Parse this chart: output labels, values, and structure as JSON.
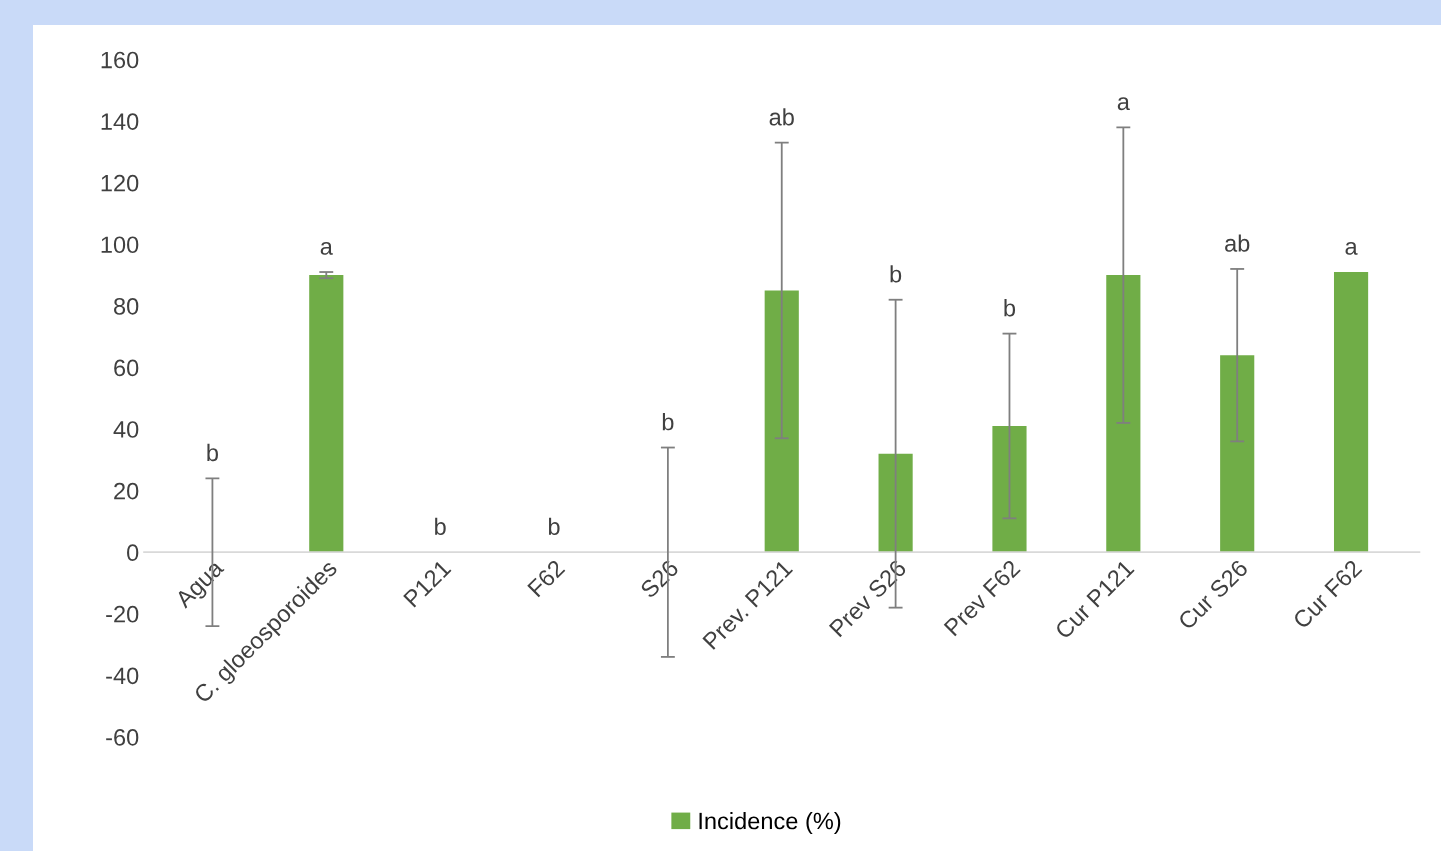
{
  "chart_data": {
    "type": "bar",
    "categories": [
      "Agua",
      "C. gloeosporoides",
      "P121",
      "F62",
      "S26",
      "Prev. P121",
      "Prev S26",
      "Prev F62",
      "Cur P121",
      "Cur S26",
      "Cur F62"
    ],
    "series": [
      {
        "name": "Incidence (%)",
        "color": "#70ad47",
        "values": [
          0,
          90,
          0,
          0,
          0,
          85,
          32,
          41,
          90,
          64,
          91
        ],
        "errors": [
          24,
          1,
          null,
          null,
          34,
          48,
          50,
          30,
          48,
          28,
          null
        ]
      }
    ],
    "ylim": [
      -60,
      160
    ],
    "yticks": [
      -60,
      -40,
      -20,
      0,
      20,
      40,
      60,
      80,
      100,
      120,
      140,
      160
    ],
    "grid": false,
    "legend": "bottom",
    "annotations": [
      {
        "text": "b",
        "x": "Agua",
        "y": 24
      },
      {
        "text": "a",
        "x": "C. gloeosporoides",
        "y": 91
      },
      {
        "text": "b",
        "x": "P121",
        "y": 0
      },
      {
        "text": "b",
        "x": "F62",
        "y": 0
      },
      {
        "text": "b",
        "x": "S26",
        "y": 34
      },
      {
        "text": "ab",
        "x": "Prev. P121",
        "y": 133
      },
      {
        "text": "b",
        "x": "Prev S26",
        "y": 82
      },
      {
        "text": "b",
        "x": "Prev F62",
        "y": 71
      },
      {
        "text": "a",
        "x": "Cur P121",
        "y": 138
      },
      {
        "text": "ab",
        "x": "Cur S26",
        "y": 92
      },
      {
        "text": "a",
        "x": "Cur F62",
        "y": 91
      }
    ]
  }
}
